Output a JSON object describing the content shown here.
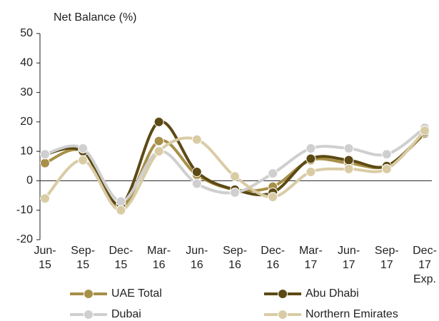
{
  "chart_data": {
    "type": "line",
    "y_label": "Net Balance (%)",
    "categories": [
      [
        "Jun-",
        "15"
      ],
      [
        "Sep-",
        "15"
      ],
      [
        "Dec-",
        "15"
      ],
      [
        "Mar-",
        "16"
      ],
      [
        "Jun-",
        "16"
      ],
      [
        "Sep-",
        "16"
      ],
      [
        "Dec-",
        "16"
      ],
      [
        "Mar-",
        "17"
      ],
      [
        "Jun-",
        "17"
      ],
      [
        "Sep-",
        "17"
      ],
      [
        "Dec-",
        "17",
        "Exp."
      ]
    ],
    "series": [
      {
        "name": "UAE Total",
        "color": "#a89048",
        "values": [
          6,
          10,
          -9,
          13.5,
          2,
          -3,
          -2,
          7,
          6,
          5,
          16
        ]
      },
      {
        "name": "Abu Dhabi",
        "color": "#5c4a14",
        "values": [
          9,
          10,
          -8,
          20,
          3,
          -3,
          -4,
          7.5,
          7,
          5,
          16.5
        ]
      },
      {
        "name": "Dubai",
        "color": "#cfcfcf",
        "values": [
          9,
          11,
          -7,
          10,
          -1,
          -4,
          2.5,
          11,
          11,
          9,
          18
        ]
      },
      {
        "name": "Northern Emirates",
        "color": "#d9cca5",
        "values": [
          -6,
          7,
          -10,
          10,
          14,
          1.5,
          -5.5,
          3,
          4,
          4,
          17
        ]
      }
    ],
    "ylim": [
      -20,
      50
    ],
    "yticks": [
      -20,
      -10,
      0,
      10,
      20,
      30,
      40,
      50
    ]
  }
}
